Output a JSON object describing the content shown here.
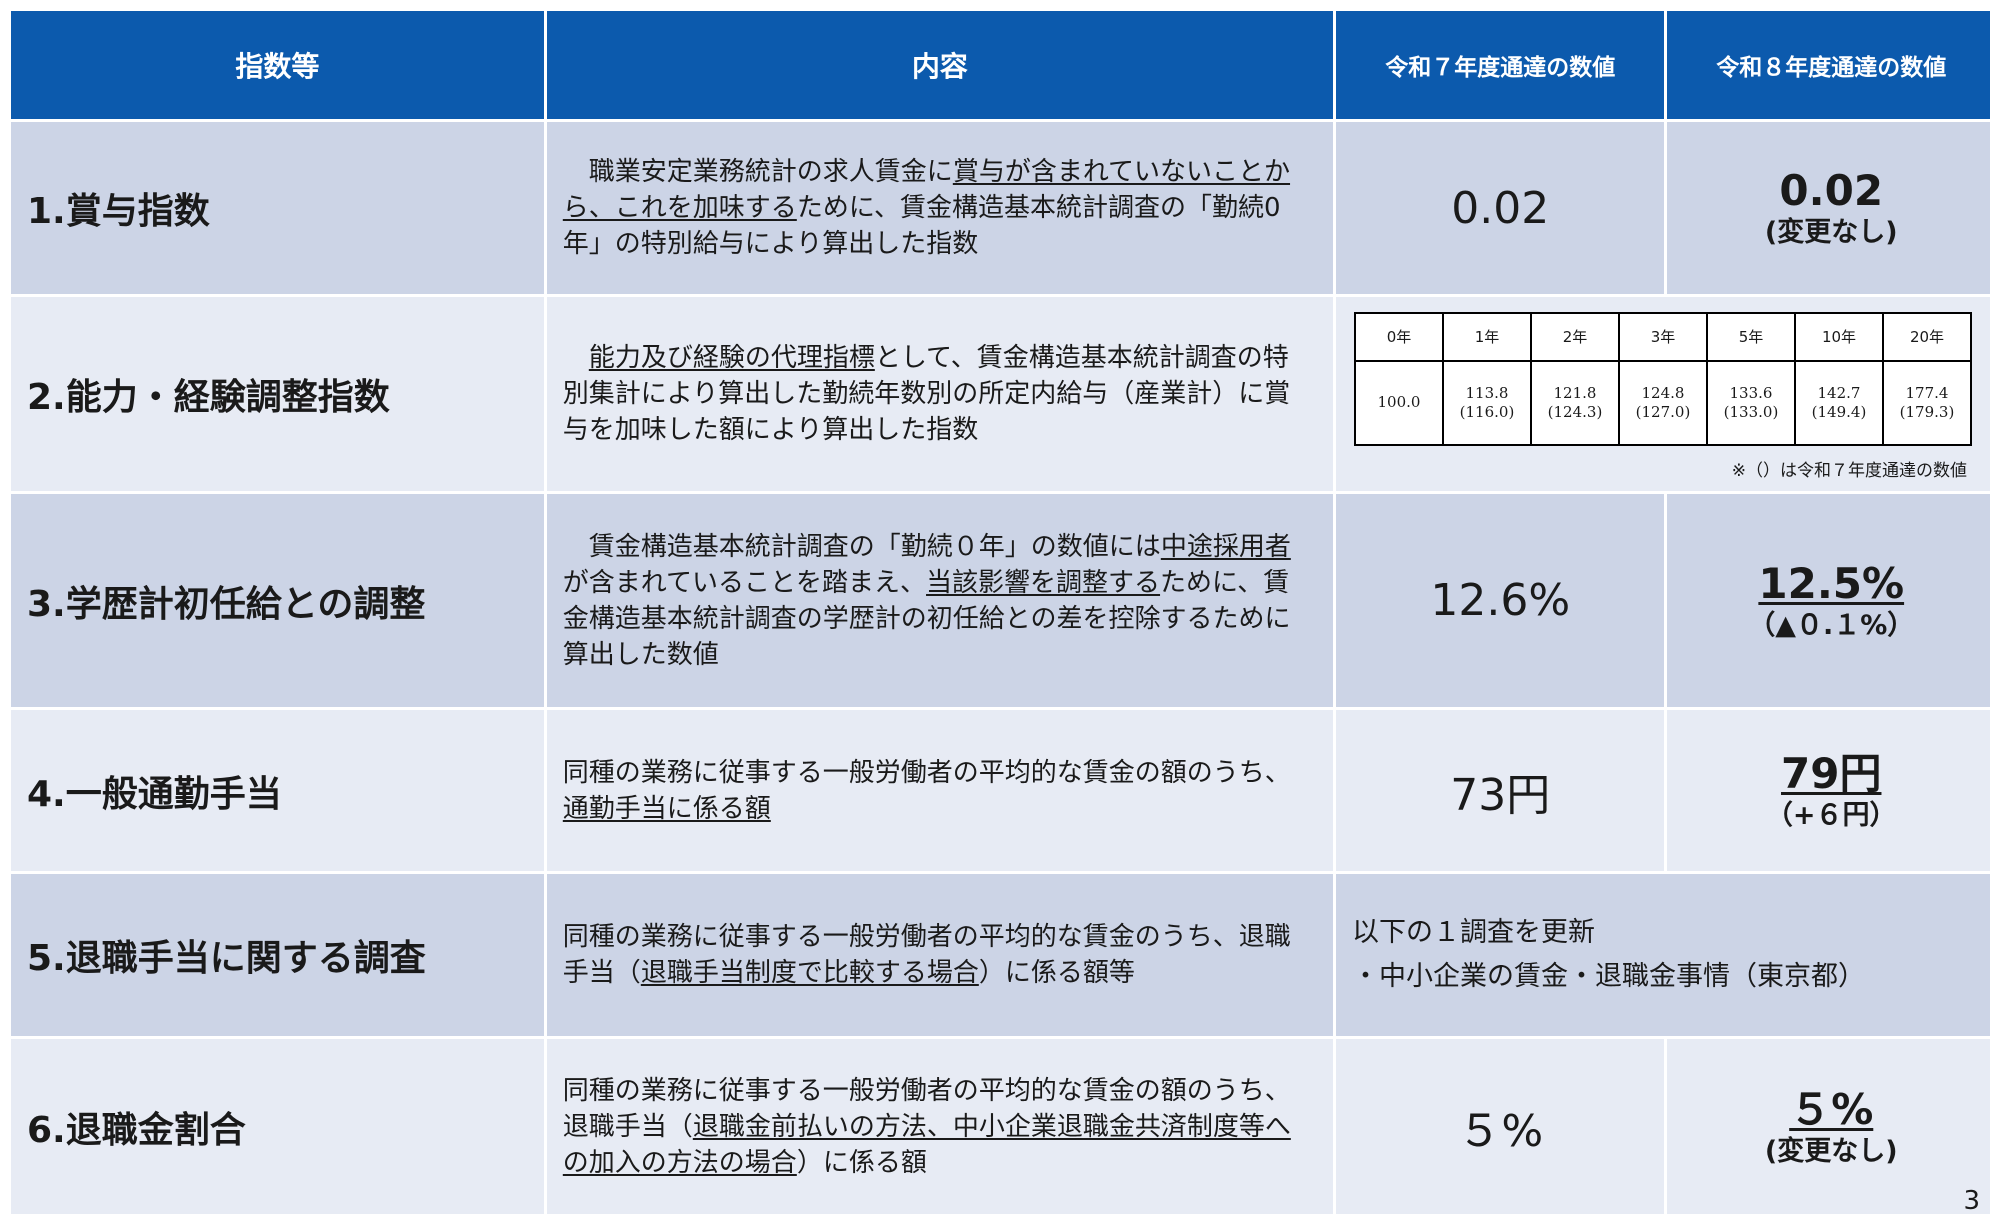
{
  "header": {
    "col1": "指数等",
    "col2": "内容",
    "col3": "令和７年度通達の数値",
    "col4": "令和８年度通達の数値"
  },
  "rows": [
    {
      "name": "1.賞与指数",
      "desc_parts": [
        "　職業安定業務統計の求人賃金に",
        "賞与が含まれていないことから、これを加味する",
        "ために、賃金構造基本統計調査の「勤続0年」の特別給与により算出した指数"
      ],
      "current": "0.02",
      "next_value": "0.02",
      "next_note": "(変更なし)"
    },
    {
      "name": "2.能力・経験調整指数",
      "desc_parts": [
        "　",
        "能力及び経験の代理指標",
        "として、賃金構造基本統計調査の特別集計により算出した勤続年数別の所定内給与（産業計）に賞与を加味した額により算出した指数"
      ],
      "seniority_table": {
        "headers": [
          "0年",
          "1年",
          "2年",
          "3年",
          "5年",
          "10年",
          "20年"
        ],
        "new_values": [
          "100.0",
          "113.8",
          "121.8",
          "124.8",
          "133.6",
          "142.7",
          "177.4"
        ],
        "old_values": [
          "",
          "(116.0)",
          "(124.3)",
          "(127.0)",
          "(133.0)",
          "(149.4)",
          "(179.3)"
        ],
        "note": "※（）は令和７年度通達の数値"
      }
    },
    {
      "name": "3.学歴計初任給との調整",
      "desc_parts": [
        "　賃金構造基本統計調査の「勤続０年」の数値には",
        "中途採用者",
        "が含まれていることを踏まえ、",
        "当該影響を調整する",
        "ために、賃金構造基本統計調査の学歴計の初任給との差を控除するために算出した数値"
      ],
      "current": "12.6%",
      "next_value": "12.5%",
      "next_note": "（▲０.１%）"
    },
    {
      "name": "4.一般通勤手当",
      "desc_parts": [
        "同種の業務に従事する一般労働者の平均的な賃金の額のうち、",
        "通勤手当に係る額"
      ],
      "current": "73円",
      "next_value": "79円",
      "next_note": "（+６円）"
    },
    {
      "name": "5.退職手当に関する調査",
      "desc_parts": [
        "同種の業務に従事する一般労働者の平均的な賃金のうち、退職手当（",
        "退職手当制度で比較する場合",
        "）に係る額等"
      ],
      "survey_line1": "以下の１調査を更新",
      "survey_line2": "・中小企業の賃金・退職金事情（東京都）"
    },
    {
      "name": "6.退職金割合",
      "desc_parts": [
        "同種の業務に従事する一般労働者の平均的な賃金の額のうち、退職手当（",
        "退職金前払いの方法、中小企業退職金共済制度等への加入の方法の場合",
        "）に係る額"
      ],
      "current": "５%",
      "next_value": "５%",
      "next_note": "(変更なし)"
    }
  ],
  "page_number": "3"
}
